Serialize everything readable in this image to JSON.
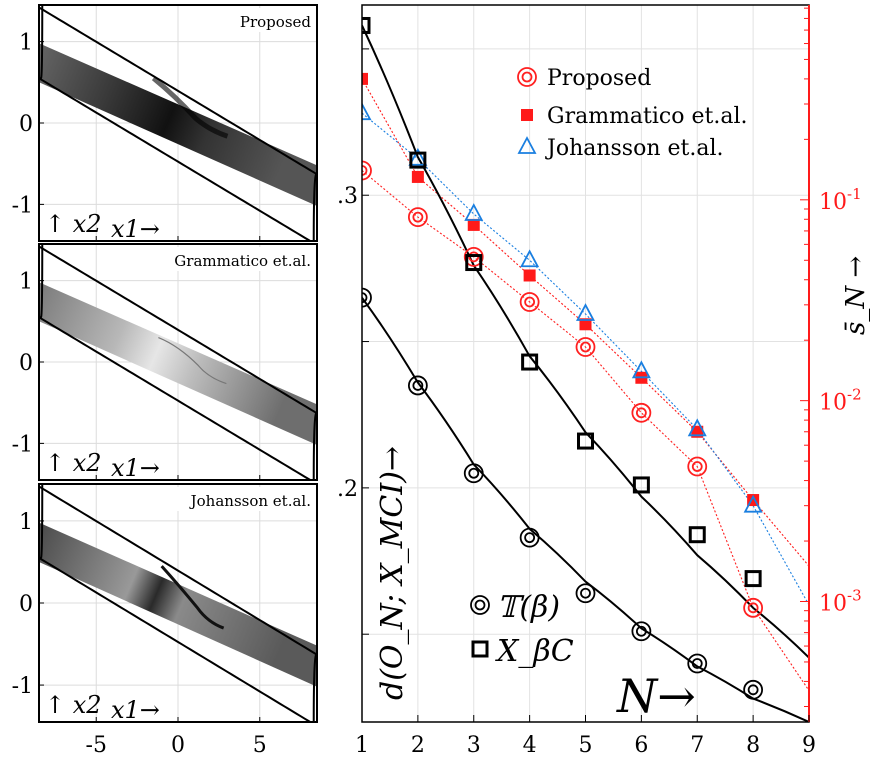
{
  "chart_data": [
    {
      "type": "heatmap",
      "title": "Proposed",
      "xlabel": "x1→",
      "ylabel": "↑ x2",
      "xlim": [
        -8.5,
        8.5
      ],
      "ylim": [
        -1.45,
        1.45
      ],
      "yticks": [
        "1",
        "0",
        "-1"
      ],
      "xticks": []
    },
    {
      "type": "heatmap",
      "title": "Grammatico et.al.",
      "xlabel": "x1→",
      "ylabel": "↑ x2",
      "xlim": [
        -8.5,
        8.5
      ],
      "ylim": [
        -1.45,
        1.45
      ],
      "yticks": [
        "1",
        "0",
        "-1"
      ],
      "xticks": []
    },
    {
      "type": "heatmap",
      "title": "Johansson et.al.",
      "xlabel": "x1→",
      "ylabel": "↑ x2",
      "xlim": [
        -8.5,
        8.5
      ],
      "ylim": [
        -1.45,
        1.45
      ],
      "yticks": [
        "1",
        "0",
        "-1"
      ],
      "xticks": [
        "-5",
        "0",
        "5"
      ]
    },
    {
      "type": "line",
      "xlabel": "N→",
      "ylabel": "d(O_N; X_MCI)→",
      "y2label": "s̄_N →",
      "xlim": [
        1,
        9
      ],
      "ylim": [
        0.12,
        0.365
      ],
      "y2lim_log": [
        -3.6,
        -0.03
      ],
      "xticks": [
        "1",
        "2",
        "3",
        "4",
        "5",
        "6",
        "7",
        "8",
        "9"
      ],
      "yticks": [
        ".2",
        ".3"
      ],
      "y2ticks": [
        "10-3",
        "10-2",
        "10-1"
      ],
      "x": [
        1,
        2,
        3,
        4,
        5,
        6,
        7,
        8
      ],
      "series_left": [
        {
          "name": "𝕋(β)",
          "marker": "double-circle",
          "color": "#000000",
          "values": [
            0.265,
            0.235,
            0.205,
            0.183,
            0.164,
            0.151,
            0.14,
            0.131
          ],
          "fit": [
            [
              1,
              0.265
            ],
            [
              2,
              0.236
            ],
            [
              3,
              0.208
            ],
            [
              4,
              0.186
            ],
            [
              5,
              0.168
            ],
            [
              6,
              0.152
            ],
            [
              7,
              0.139
            ],
            [
              8,
              0.128
            ],
            [
              9,
              0.12
            ]
          ]
        },
        {
          "name": "X_βC",
          "marker": "square",
          "color": "#000000",
          "values": [
            0.358,
            0.312,
            0.277,
            0.243,
            0.216,
            0.201,
            0.184,
            0.169
          ],
          "fit": [
            [
              1,
              0.358
            ],
            [
              2,
              0.313
            ],
            [
              3,
              0.276
            ],
            [
              4,
              0.245
            ],
            [
              5,
              0.219
            ],
            [
              6,
              0.197
            ],
            [
              7,
              0.177
            ],
            [
              8,
              0.159
            ],
            [
              9,
              0.142
            ]
          ]
        }
      ],
      "series_right": [
        {
          "name": "Proposed",
          "marker": "double-circle",
          "color": "#ff2020",
          "values": [
            0.14,
            0.082,
            0.052,
            0.031,
            0.0185,
            0.0087,
            0.0047,
            0.00093
          ],
          "line_end": 0.00036
        },
        {
          "name": "Grammatico et.al.",
          "marker": "filled-square",
          "color": "#ff1a1a",
          "values": [
            0.4,
            0.13,
            0.075,
            0.042,
            0.024,
            0.013,
            0.007,
            0.0032
          ],
          "line_end": 0.0015
        },
        {
          "name": "Johansson et.al.",
          "marker": "triangle",
          "color": "#1a7fe0",
          "values": [
            0.27,
            0.16,
            0.085,
            0.05,
            0.027,
            0.014,
            0.0072,
            0.003
          ],
          "line_end": 0.00096
        }
      ]
    }
  ]
}
